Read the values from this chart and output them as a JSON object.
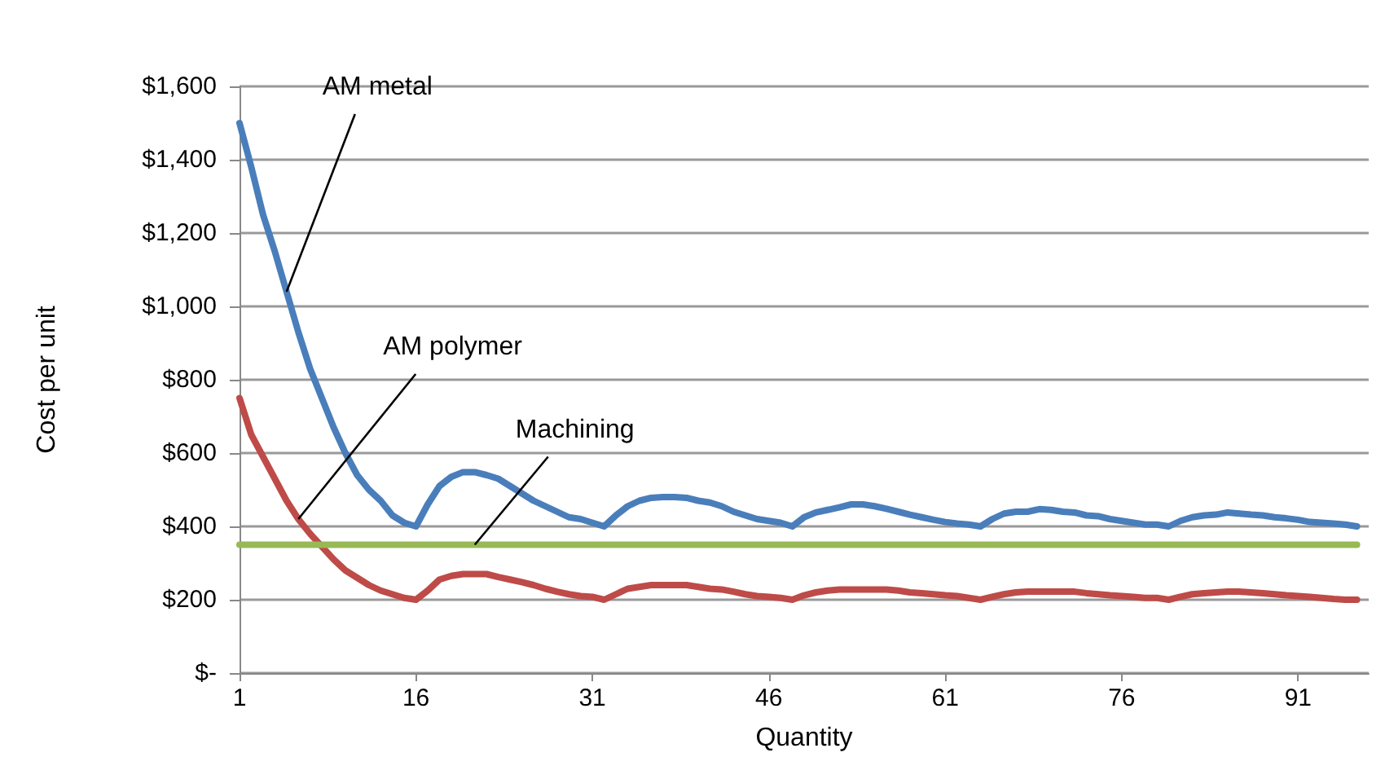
{
  "chart_data": {
    "type": "line",
    "xlabel": "Quantity",
    "ylabel": "Cost per unit",
    "x": [
      1,
      2,
      3,
      4,
      5,
      6,
      7,
      8,
      9,
      10,
      11,
      12,
      13,
      14,
      15,
      16,
      17,
      18,
      19,
      20,
      21,
      22,
      23,
      24,
      25,
      26,
      27,
      28,
      29,
      30,
      31,
      32,
      33,
      34,
      35,
      36,
      37,
      38,
      39,
      40,
      41,
      42,
      43,
      44,
      45,
      46,
      47,
      48,
      49,
      50,
      51,
      52,
      53,
      54,
      55,
      56,
      57,
      58,
      59,
      60,
      61,
      62,
      63,
      64,
      65,
      66,
      67,
      68,
      69,
      70,
      71,
      72,
      73,
      74,
      75,
      76,
      77,
      78,
      79,
      80,
      81,
      82,
      83,
      84,
      85,
      86,
      87,
      88,
      89,
      90,
      91,
      92,
      93,
      94,
      95,
      96
    ],
    "series": [
      {
        "name": "AM metal",
        "color": "#4a7ebb",
        "values": [
          1500,
          1380,
          1250,
          1150,
          1040,
          930,
          830,
          750,
          670,
          600,
          540,
          500,
          470,
          430,
          410,
          400,
          460,
          510,
          535,
          548,
          548,
          540,
          530,
          510,
          490,
          470,
          455,
          440,
          425,
          420,
          410,
          400,
          430,
          455,
          470,
          478,
          480,
          480,
          478,
          470,
          465,
          455,
          440,
          430,
          420,
          415,
          410,
          400,
          425,
          438,
          445,
          452,
          460,
          460,
          455,
          448,
          440,
          432,
          425,
          418,
          412,
          408,
          405,
          400,
          420,
          435,
          440,
          440,
          447,
          445,
          440,
          438,
          430,
          428,
          420,
          415,
          410,
          405,
          405,
          400,
          415,
          425,
          430,
          432,
          438,
          435,
          432,
          430,
          425,
          422,
          418,
          412,
          410,
          408,
          405,
          400
        ]
      },
      {
        "name": "AM polymer",
        "color": "#be4b48",
        "values": [
          750,
          650,
          590,
          530,
          470,
          420,
          380,
          345,
          310,
          280,
          260,
          240,
          225,
          215,
          205,
          200,
          225,
          255,
          265,
          270,
          270,
          270,
          262,
          255,
          248,
          240,
          230,
          222,
          215,
          210,
          208,
          200,
          215,
          230,
          235,
          240,
          240,
          240,
          240,
          235,
          230,
          228,
          222,
          215,
          210,
          208,
          205,
          200,
          212,
          220,
          225,
          228,
          228,
          228,
          228,
          228,
          225,
          220,
          218,
          215,
          212,
          210,
          205,
          200,
          208,
          215,
          220,
          222,
          222,
          222,
          222,
          222,
          218,
          215,
          212,
          210,
          208,
          205,
          205,
          200,
          208,
          215,
          218,
          220,
          222,
          222,
          220,
          218,
          215,
          212,
          210,
          208,
          205,
          202,
          200,
          200
        ]
      },
      {
        "name": "Machining",
        "color": "#98b954",
        "values": [
          350,
          350,
          350,
          350,
          350,
          350,
          350,
          350,
          350,
          350,
          350,
          350,
          350,
          350,
          350,
          350,
          350,
          350,
          350,
          350,
          350,
          350,
          350,
          350,
          350,
          350,
          350,
          350,
          350,
          350,
          350,
          350,
          350,
          350,
          350,
          350,
          350,
          350,
          350,
          350,
          350,
          350,
          350,
          350,
          350,
          350,
          350,
          350,
          350,
          350,
          350,
          350,
          350,
          350,
          350,
          350,
          350,
          350,
          350,
          350,
          350,
          350,
          350,
          350,
          350,
          350,
          350,
          350,
          350,
          350,
          350,
          350,
          350,
          350,
          350,
          350,
          350,
          350,
          350,
          350,
          350,
          350,
          350,
          350,
          350,
          350,
          350,
          350,
          350,
          350,
          350,
          350,
          350,
          350,
          350,
          350
        ]
      }
    ],
    "xlim": [
      1,
      97
    ],
    "xticks": [
      1,
      16,
      31,
      46,
      61,
      76,
      91
    ],
    "ylim": [
      0,
      1600
    ],
    "yticks": [
      {
        "value": 0,
        "label": "$-"
      },
      {
        "value": 200,
        "label": "$200"
      },
      {
        "value": 400,
        "label": "$400"
      },
      {
        "value": 600,
        "label": "$600"
      },
      {
        "value": 800,
        "label": "$800"
      },
      {
        "value": 1000,
        "label": "$1,000"
      },
      {
        "value": 1200,
        "label": "$1,200"
      },
      {
        "value": 1400,
        "label": "$1,400"
      },
      {
        "value": 1600,
        "label": "$1,600"
      }
    ],
    "grid": "y",
    "legend": false,
    "marker": "none",
    "line_style": "solid"
  }
}
